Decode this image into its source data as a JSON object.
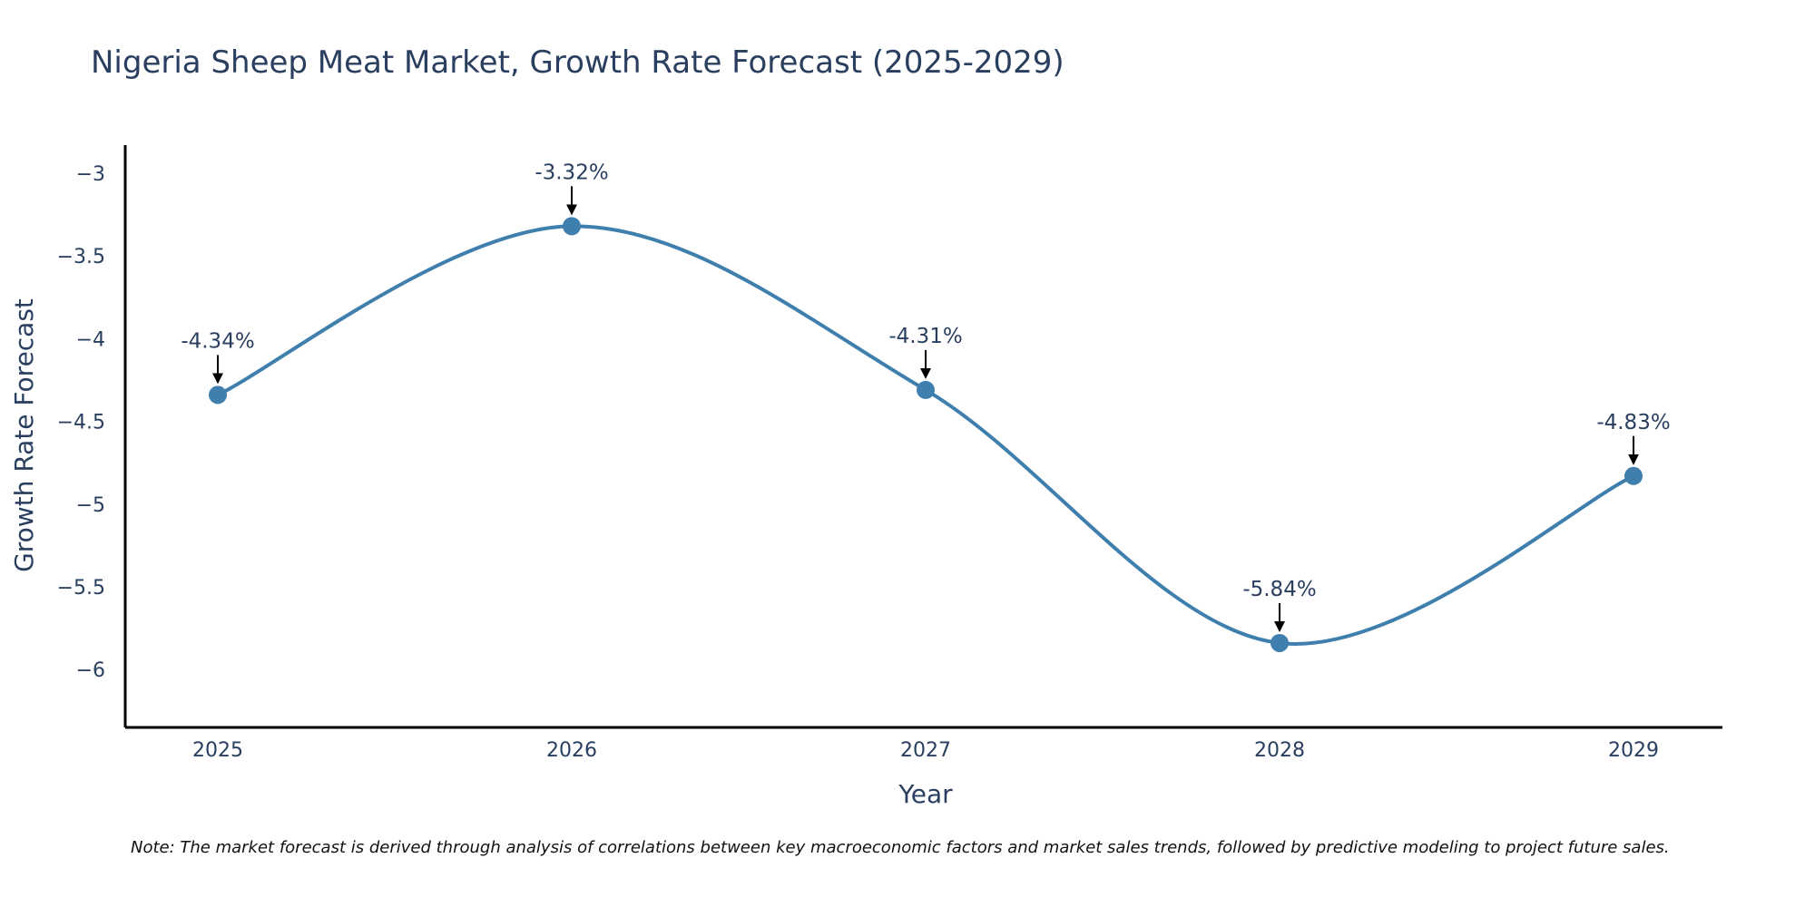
{
  "chart_data": {
    "type": "line",
    "title": "Nigeria Sheep Meat Market, Growth Rate Forecast (2025-2029)",
    "xlabel": "Year",
    "ylabel": "Growth Rate Forecast",
    "categories": [
      "2025",
      "2026",
      "2027",
      "2028",
      "2029"
    ],
    "series": [
      {
        "name": "Growth Rate Forecast",
        "values": [
          -4.34,
          -3.32,
          -4.31,
          -5.84,
          -4.83
        ]
      }
    ],
    "data_labels": [
      "-4.34%",
      "-3.32%",
      "-4.31%",
      "-5.84%",
      "-4.83%"
    ],
    "y_ticks": [
      -3,
      -3.5,
      -4,
      -4.5,
      -5,
      -5.5,
      -6
    ],
    "y_tick_labels": [
      "−3",
      "−3.5",
      "−4",
      "−4.5",
      "−5",
      "−5.5",
      "−6"
    ],
    "ylim": [
      -6.35,
      -2.83
    ],
    "grid": false,
    "line_color": "#3f7fae",
    "marker_color": "#3f7fae",
    "note": "Note: The market forecast is derived through analysis of correlations between key macroeconomic factors and market sales trends, followed by predictive modeling to project future sales."
  }
}
